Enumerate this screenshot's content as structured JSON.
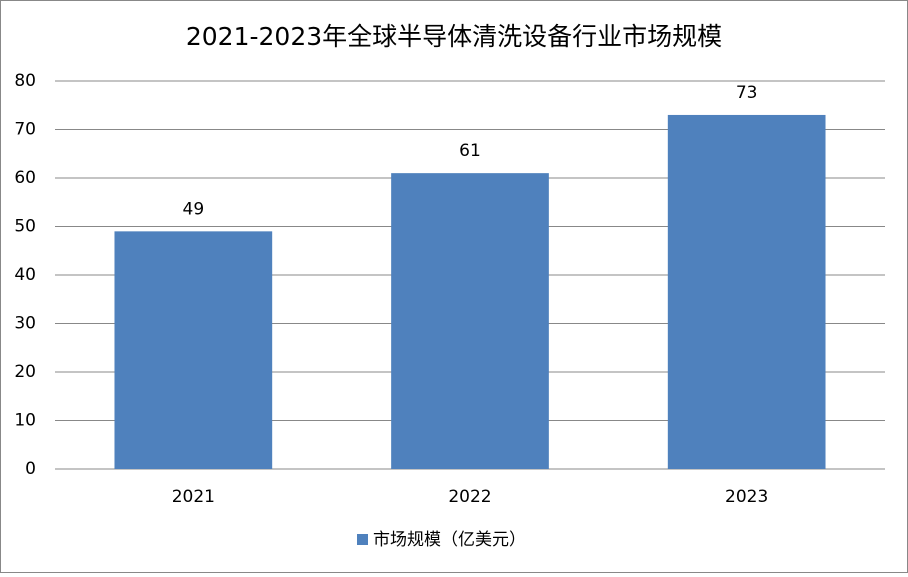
{
  "chart_data": {
    "type": "bar",
    "title": "2021-2023年全球半导体清洗设备行业市场规模",
    "categories": [
      "2021",
      "2022",
      "2023"
    ],
    "series": [
      {
        "name": "市场规模（亿美元）",
        "color": "#4f81bd",
        "values": [
          49,
          61,
          73
        ]
      }
    ],
    "ylim": [
      0,
      80
    ],
    "yticks": [
      0,
      10,
      20,
      30,
      40,
      50,
      60,
      70,
      80
    ],
    "grid": true,
    "legend": "bottom"
  }
}
